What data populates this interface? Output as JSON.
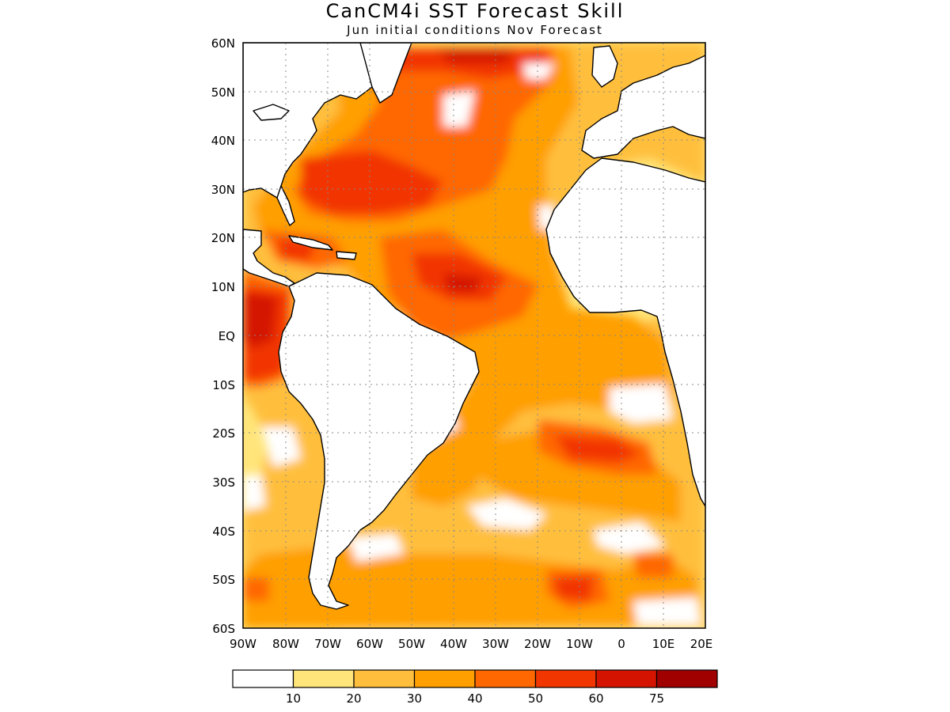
{
  "title": "CanCM4i SST Forecast Skill",
  "subtitle": "Jun initial conditions   Nov Forecast",
  "map": {
    "lon_range": [
      -90,
      20
    ],
    "lat_range": [
      -60,
      60
    ],
    "lat_ticks": [
      "60N",
      "50N",
      "40N",
      "30N",
      "20N",
      "10N",
      "EQ",
      "10S",
      "20S",
      "30S",
      "40S",
      "50S",
      "60S"
    ],
    "lon_ticks": [
      "90W",
      "80W",
      "70W",
      "60W",
      "50W",
      "40W",
      "30W",
      "20W",
      "10W",
      "0",
      "10E",
      "20E"
    ],
    "gridlines": "dotted",
    "land_color": "#ffffff",
    "coastline_color": "#000000"
  },
  "colorbar": {
    "levels": [
      "10",
      "20",
      "30",
      "40",
      "50",
      "60",
      "75"
    ],
    "colors": [
      "#ffffff",
      "#ffe57a",
      "#ffbf3c",
      "#ff9f00",
      "#ff6800",
      "#f23600",
      "#d41400",
      "#a00000"
    ]
  }
}
